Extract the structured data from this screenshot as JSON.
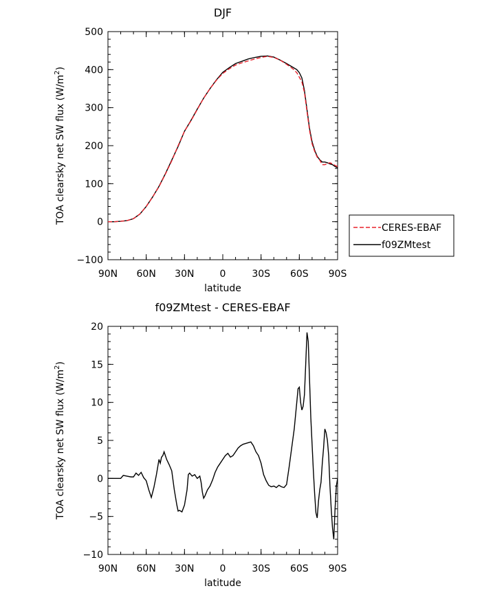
{
  "chart_data": [
    {
      "type": "line",
      "title": "DJF",
      "xlabel": "latitude",
      "ylabel": "TOA clearsky net SW flux (W/m²)",
      "ylabel_parts": [
        "TOA clearsky net SW flux (W/m",
        "2",
        ")"
      ],
      "xlim": [
        -90,
        90
      ],
      "ylim": [
        -100,
        500
      ],
      "xticks": [
        -90,
        -60,
        -30,
        0,
        30,
        60,
        90
      ],
      "xticklabels": [
        "90N",
        "60N",
        "30N",
        "0",
        "30S",
        "60S",
        "90S"
      ],
      "yticks": [
        -100,
        0,
        100,
        200,
        300,
        400,
        500
      ],
      "yticklabels": [
        "−100",
        "0",
        "100",
        "200",
        "300",
        "400",
        "500"
      ],
      "legend_position": "right",
      "series": [
        {
          "name": "CERES-EBAF",
          "color": "#e8202a",
          "dash": "dashed",
          "x": [
            -90,
            -85,
            -80,
            -75,
            -70,
            -65,
            -60,
            -55,
            -50,
            -45,
            -40,
            -35,
            -30,
            -25,
            -20,
            -15,
            -10,
            -5,
            0,
            5,
            10,
            15,
            20,
            25,
            30,
            35,
            40,
            45,
            50,
            55,
            58,
            60,
            62,
            64,
            66,
            68,
            70,
            72,
            74,
            76,
            78,
            80,
            82,
            84,
            86,
            88,
            90
          ],
          "y": [
            0,
            0,
            1,
            3,
            8,
            20,
            40,
            65,
            92,
            125,
            160,
            200,
            238,
            265,
            295,
            325,
            350,
            372,
            390,
            402,
            412,
            418,
            423,
            428,
            432,
            435,
            432,
            425,
            414,
            402,
            392,
            380,
            368,
            340,
            290,
            240,
            205,
            185,
            170,
            162,
            150,
            150,
            153,
            155,
            152,
            148,
            145
          ]
        },
        {
          "name": "f09ZMtest",
          "color": "#000000",
          "dash": "solid",
          "x": [
            -90,
            -85,
            -80,
            -75,
            -70,
            -65,
            -60,
            -55,
            -50,
            -45,
            -40,
            -35,
            -30,
            -25,
            -20,
            -15,
            -10,
            -5,
            0,
            5,
            10,
            15,
            20,
            25,
            30,
            35,
            40,
            45,
            50,
            55,
            58,
            60,
            62,
            64,
            66,
            68,
            70,
            72,
            74,
            76,
            78,
            80,
            82,
            84,
            86,
            88,
            90
          ],
          "y": [
            0,
            0,
            1,
            3,
            8,
            20,
            40,
            65,
            93,
            126,
            162,
            198,
            238,
            266,
            296,
            325,
            350,
            373,
            393,
            405,
            416,
            422,
            428,
            432,
            435,
            436,
            433,
            425,
            416,
            406,
            400,
            392,
            378,
            345,
            295,
            245,
            210,
            188,
            172,
            163,
            157,
            157,
            155,
            152,
            150,
            145,
            142
          ]
        }
      ]
    },
    {
      "type": "line",
      "title": "f09ZMtest - CERES-EBAF",
      "xlabel": "latitude",
      "ylabel": "TOA clearsky net SW flux (W/m²)",
      "ylabel_parts": [
        "TOA clearsky net SW flux (W/m",
        "2",
        ")"
      ],
      "xlim": [
        -90,
        90
      ],
      "ylim": [
        -10,
        20
      ],
      "xticks": [
        -90,
        -60,
        -30,
        0,
        30,
        60,
        90
      ],
      "xticklabels": [
        "90N",
        "60N",
        "30N",
        "0",
        "30S",
        "60S",
        "90S"
      ],
      "yticks": [
        -10,
        -5,
        0,
        5,
        10,
        15,
        20
      ],
      "yticklabels": [
        "−10",
        "−5",
        "0",
        "5",
        "10",
        "15",
        "20"
      ],
      "series": [
        {
          "name": "",
          "color": "#000000",
          "dash": "solid",
          "x": [
            -90,
            -85,
            -80,
            -78,
            -75,
            -72,
            -70,
            -68,
            -66,
            -64,
            -62,
            -60,
            -58,
            -56,
            -54,
            -52,
            -51,
            -50,
            -49,
            -48,
            -47,
            -46,
            -45,
            -44,
            -42,
            -40,
            -38,
            -36,
            -35,
            -34,
            -32,
            -30,
            -28,
            -27,
            -26,
            -24,
            -22,
            -20,
            -18,
            -17,
            -16,
            -15,
            -14,
            -12,
            -10,
            -8,
            -6,
            -4,
            -2,
            0,
            2,
            4,
            6,
            8,
            10,
            12,
            14,
            16,
            18,
            20,
            22,
            24,
            26,
            28,
            30,
            32,
            34,
            36,
            38,
            40,
            42,
            44,
            46,
            48,
            50,
            52,
            54,
            56,
            58,
            59,
            60,
            61,
            62,
            63,
            64,
            65,
            66,
            67,
            68,
            69,
            70,
            71,
            72,
            73,
            74,
            75,
            76,
            77,
            78,
            79,
            80,
            81,
            82,
            83,
            84,
            85,
            86,
            87,
            88,
            89,
            90
          ],
          "y": [
            0,
            0,
            0,
            0.4,
            0.3,
            0.2,
            0.2,
            0.7,
            0.4,
            0.8,
            0.1,
            -0.3,
            -1.5,
            -2.5,
            -1.2,
            0.5,
            1.5,
            2.5,
            2.0,
            2.8,
            3.0,
            3.5,
            3.0,
            2.5,
            1.8,
            1.0,
            -1.5,
            -3.5,
            -4.3,
            -4.2,
            -4.4,
            -3.5,
            -1.5,
            0.5,
            0.7,
            0.3,
            0.5,
            0,
            0.3,
            -0.5,
            -1.8,
            -2.6,
            -2.3,
            -1.5,
            -1.0,
            -0.2,
            0.8,
            1.5,
            2.0,
            2.5,
            3.0,
            3.3,
            2.8,
            3.0,
            3.5,
            4.0,
            4.3,
            4.5,
            4.6,
            4.7,
            4.8,
            4.3,
            3.5,
            3.0,
            2.0,
            0.5,
            -0.3,
            -0.9,
            -1.1,
            -1.0,
            -1.2,
            -0.9,
            -1.1,
            -1.2,
            -0.8,
            1.5,
            4.0,
            6.5,
            10.0,
            11.8,
            12.0,
            10.0,
            9.0,
            9.5,
            11.0,
            15.0,
            19.2,
            18.0,
            13.0,
            8.0,
            4.5,
            1.0,
            -2.0,
            -4.5,
            -5.2,
            -3.0,
            -1.5,
            -0.5,
            2.0,
            4.0,
            6.5,
            6.0,
            5.0,
            3.0,
            -1.0,
            -4.0,
            -6.5,
            -8.0,
            -4.0,
            -1.0,
            0
          ]
        }
      ]
    }
  ]
}
